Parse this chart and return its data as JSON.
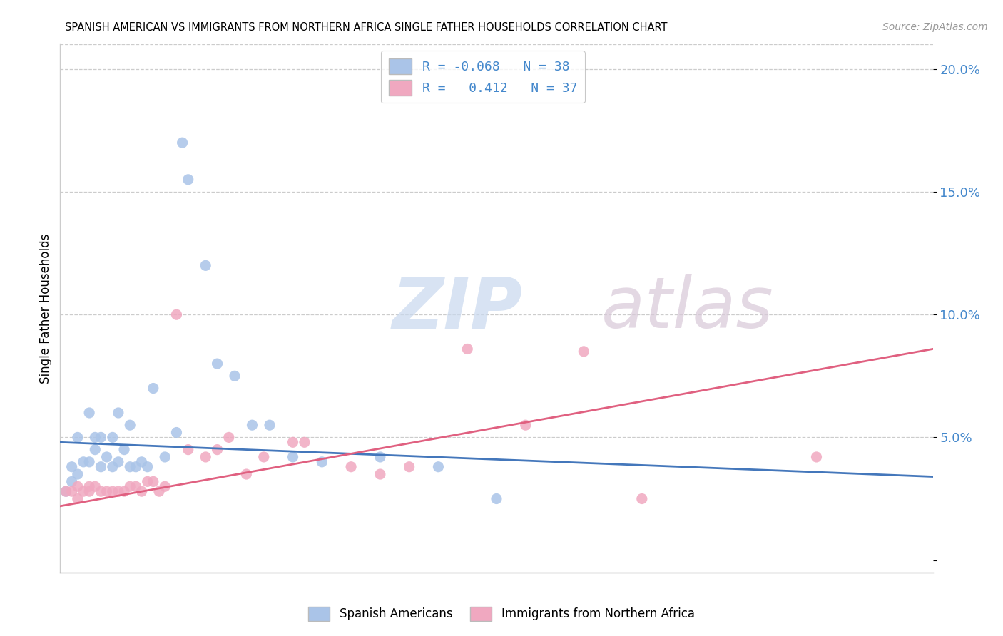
{
  "title": "SPANISH AMERICAN VS IMMIGRANTS FROM NORTHERN AFRICA SINGLE FATHER HOUSEHOLDS CORRELATION CHART",
  "source": "Source: ZipAtlas.com",
  "ylabel": "Single Father Households",
  "xlim": [
    0.0,
    0.15
  ],
  "ylim": [
    -0.005,
    0.21
  ],
  "legend_R_blue": "-0.068",
  "legend_N_blue": "38",
  "legend_R_pink": "0.412",
  "legend_N_pink": "37",
  "watermark_zip": "ZIP",
  "watermark_atlas": "atlas",
  "blue_color": "#aac4e8",
  "pink_color": "#f0a8c0",
  "blue_line_color": "#4477bb",
  "pink_line_color": "#e06080",
  "axis_label_color": "#4488cc",
  "blue_line_start": 0.048,
  "blue_line_end": 0.034,
  "pink_line_start": 0.022,
  "pink_line_end": 0.086,
  "blue_x": [
    0.001,
    0.002,
    0.002,
    0.003,
    0.003,
    0.004,
    0.005,
    0.005,
    0.006,
    0.006,
    0.007,
    0.007,
    0.008,
    0.009,
    0.009,
    0.01,
    0.01,
    0.011,
    0.012,
    0.012,
    0.013,
    0.014,
    0.015,
    0.016,
    0.018,
    0.02,
    0.021,
    0.022,
    0.025,
    0.027,
    0.03,
    0.033,
    0.036,
    0.04,
    0.045,
    0.055,
    0.065,
    0.075
  ],
  "blue_y": [
    0.028,
    0.032,
    0.038,
    0.035,
    0.05,
    0.04,
    0.04,
    0.06,
    0.045,
    0.05,
    0.05,
    0.038,
    0.042,
    0.05,
    0.038,
    0.04,
    0.06,
    0.045,
    0.055,
    0.038,
    0.038,
    0.04,
    0.038,
    0.07,
    0.042,
    0.052,
    0.17,
    0.155,
    0.12,
    0.08,
    0.075,
    0.055,
    0.055,
    0.042,
    0.04,
    0.042,
    0.038,
    0.025
  ],
  "pink_x": [
    0.001,
    0.002,
    0.003,
    0.003,
    0.004,
    0.005,
    0.005,
    0.006,
    0.007,
    0.008,
    0.009,
    0.01,
    0.011,
    0.012,
    0.013,
    0.014,
    0.015,
    0.016,
    0.017,
    0.018,
    0.02,
    0.022,
    0.025,
    0.027,
    0.029,
    0.032,
    0.035,
    0.04,
    0.042,
    0.05,
    0.055,
    0.06,
    0.07,
    0.08,
    0.09,
    0.1,
    0.13
  ],
  "pink_y": [
    0.028,
    0.028,
    0.025,
    0.03,
    0.028,
    0.028,
    0.03,
    0.03,
    0.028,
    0.028,
    0.028,
    0.028,
    0.028,
    0.03,
    0.03,
    0.028,
    0.032,
    0.032,
    0.028,
    0.03,
    0.1,
    0.045,
    0.042,
    0.045,
    0.05,
    0.035,
    0.042,
    0.048,
    0.048,
    0.038,
    0.035,
    0.038,
    0.086,
    0.055,
    0.085,
    0.025,
    0.042
  ]
}
